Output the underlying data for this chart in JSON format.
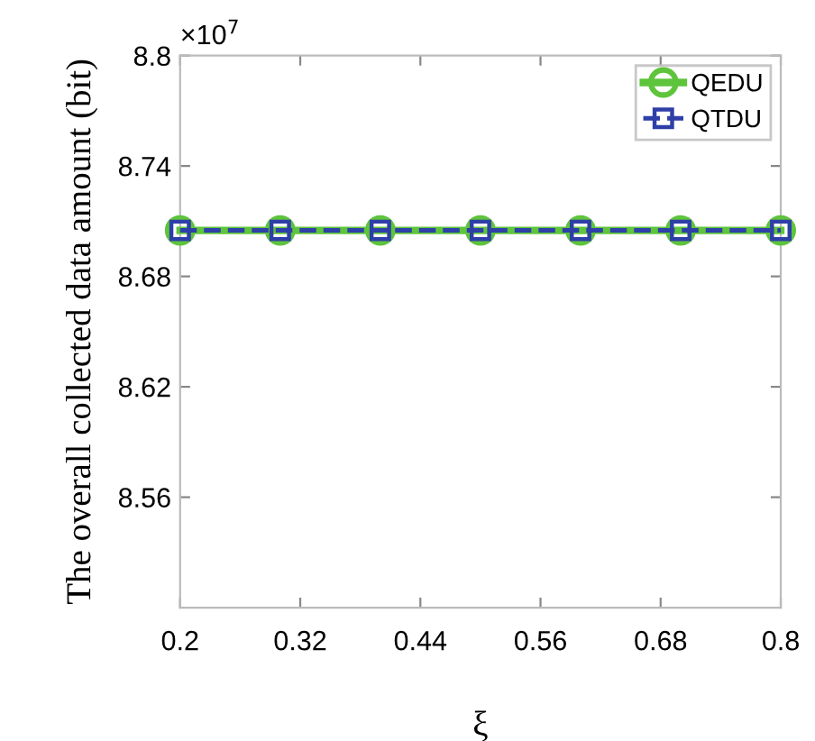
{
  "chart_data": {
    "type": "line",
    "xlabel": "ξ",
    "ylabel": "The overall collected data amount (bit)",
    "annotations": [
      "×10$^{7}$"
    ],
    "x": [
      0.2,
      0.3,
      0.4,
      0.5,
      0.6,
      0.7,
      0.8
    ],
    "series": [
      {
        "name": "QEDU",
        "color": "#5ec43c",
        "values": [
          8.705,
          8.705,
          8.705,
          8.705,
          8.705,
          8.705,
          8.705
        ],
        "marker": "circle",
        "line_style": "solid"
      },
      {
        "name": "QTDU",
        "color": "#2e3fa8",
        "values": [
          8.705,
          8.705,
          8.705,
          8.705,
          8.705,
          8.705,
          8.705
        ],
        "marker": "square",
        "line_style": "dashed"
      }
    ],
    "xlim": [
      0.2,
      0.8
    ],
    "xticks": [
      0.2,
      0.32,
      0.44,
      0.56,
      0.68,
      0.8
    ],
    "ylim": [
      8.5,
      8.8
    ],
    "yticks": [
      8.56,
      8.62,
      8.68,
      8.74,
      8.8
    ],
    "grid": false,
    "legend": "top right"
  }
}
